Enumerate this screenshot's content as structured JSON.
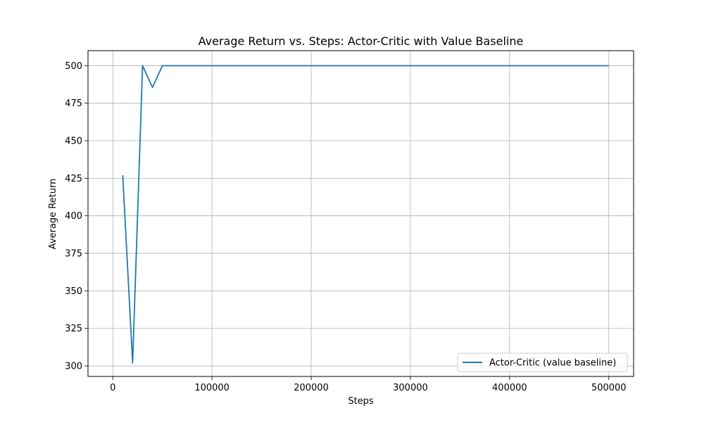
{
  "chart_data": {
    "type": "line",
    "title": "Average Return vs. Steps: Actor-Critic with Value Baseline",
    "xlabel": "Steps",
    "ylabel": "Average Return",
    "xlim": [
      -25000,
      525000
    ],
    "ylim": [
      293,
      510
    ],
    "xticks": [
      0,
      100000,
      200000,
      300000,
      400000,
      500000
    ],
    "yticks": [
      300,
      325,
      350,
      375,
      400,
      425,
      450,
      475,
      500
    ],
    "grid": true,
    "legend_position": "lower-right",
    "series": [
      {
        "name": "Actor-Critic (value baseline)",
        "color": "#1f77b4",
        "x": [
          10000,
          20000,
          30000,
          40000,
          50000,
          60000,
          70000,
          80000,
          90000,
          100000,
          150000,
          200000,
          250000,
          300000,
          350000,
          400000,
          450000,
          500000
        ],
        "y": [
          427,
          302,
          500,
          485.5,
          500,
          500,
          500,
          500,
          500,
          500,
          500,
          500,
          500,
          500,
          500,
          500,
          500,
          500
        ]
      }
    ]
  }
}
